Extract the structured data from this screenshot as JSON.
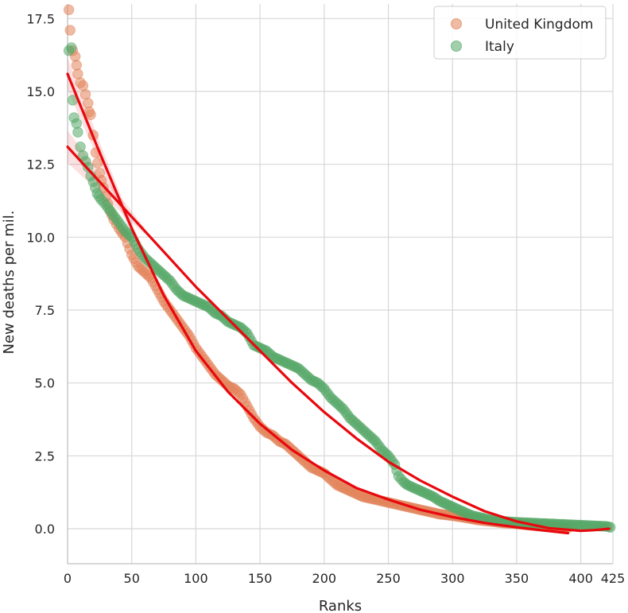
{
  "chart_data": {
    "type": "scatter",
    "title": "",
    "xlabel": "Ranks",
    "ylabel": "New deaths per mil.",
    "xlim": [
      0,
      425
    ],
    "ylim": [
      -1.2,
      18.0
    ],
    "xticks": [
      0,
      50,
      100,
      150,
      200,
      250,
      300,
      350,
      400,
      425
    ],
    "xtick_labels": [
      "0",
      "50",
      "100",
      "150",
      "200",
      "250",
      "300",
      "350",
      "400",
      "425"
    ],
    "yticks": [
      0.0,
      2.5,
      5.0,
      7.5,
      10.0,
      12.5,
      15.0,
      17.5
    ],
    "ytick_labels": [
      "0.0",
      "2.5",
      "5.0",
      "7.5",
      "10.0",
      "12.5",
      "15.0",
      "17.5"
    ],
    "grid": true,
    "legend_position": "top-right",
    "series": [
      {
        "name": "United Kingdom",
        "color": "#e1845a",
        "points": [
          [
            1,
            17.8
          ],
          [
            2,
            17.1
          ],
          [
            4,
            16.4
          ],
          [
            6,
            16.2
          ],
          [
            7,
            15.9
          ],
          [
            8,
            15.6
          ],
          [
            10,
            15.3
          ],
          [
            12,
            15.2
          ],
          [
            14,
            14.9
          ],
          [
            16,
            14.6
          ],
          [
            17,
            14.3
          ],
          [
            18,
            14.2
          ],
          [
            20,
            13.5
          ],
          [
            22,
            12.9
          ],
          [
            25,
            12.2
          ],
          [
            28,
            11.7
          ],
          [
            30,
            11.4
          ],
          [
            33,
            10.9
          ],
          [
            36,
            10.6
          ],
          [
            40,
            10.3
          ],
          [
            45,
            10.0
          ],
          [
            50,
            9.4
          ],
          [
            55,
            9.0
          ],
          [
            60,
            8.8
          ],
          [
            65,
            8.6
          ],
          [
            70,
            8.2
          ],
          [
            75,
            7.8
          ],
          [
            80,
            7.5
          ],
          [
            85,
            7.2
          ],
          [
            90,
            6.9
          ],
          [
            95,
            6.6
          ],
          [
            100,
            6.2
          ],
          [
            105,
            5.9
          ],
          [
            110,
            5.6
          ],
          [
            115,
            5.3
          ],
          [
            120,
            5.1
          ],
          [
            125,
            4.9
          ],
          [
            130,
            4.8
          ],
          [
            135,
            4.6
          ],
          [
            140,
            4.2
          ],
          [
            145,
            3.8
          ],
          [
            150,
            3.5
          ],
          [
            155,
            3.3
          ],
          [
            160,
            3.2
          ],
          [
            165,
            3.0
          ],
          [
            170,
            2.9
          ],
          [
            175,
            2.7
          ],
          [
            180,
            2.5
          ],
          [
            185,
            2.3
          ],
          [
            190,
            2.1
          ],
          [
            195,
            2.0
          ],
          [
            200,
            1.9
          ],
          [
            205,
            1.7
          ],
          [
            210,
            1.5
          ],
          [
            215,
            1.4
          ],
          [
            220,
            1.3
          ],
          [
            225,
            1.2
          ],
          [
            230,
            1.1
          ],
          [
            240,
            1.0
          ],
          [
            250,
            0.9
          ],
          [
            260,
            0.8
          ],
          [
            270,
            0.7
          ],
          [
            280,
            0.6
          ],
          [
            290,
            0.5
          ],
          [
            300,
            0.45
          ],
          [
            310,
            0.38
          ],
          [
            320,
            0.3
          ],
          [
            330,
            0.25
          ],
          [
            340,
            0.2
          ],
          [
            350,
            0.17
          ],
          [
            360,
            0.12
          ],
          [
            370,
            0.08
          ],
          [
            380,
            0.05
          ],
          [
            390,
            0.03
          ]
        ]
      },
      {
        "name": "Italy",
        "color": "#55a868",
        "points": [
          [
            1,
            16.4
          ],
          [
            3,
            16.5
          ],
          [
            4,
            14.7
          ],
          [
            5,
            14.1
          ],
          [
            7,
            13.9
          ],
          [
            8,
            13.6
          ],
          [
            10,
            13.1
          ],
          [
            12,
            12.8
          ],
          [
            14,
            12.6
          ],
          [
            16,
            12.4
          ],
          [
            18,
            12.1
          ],
          [
            20,
            11.9
          ],
          [
            23,
            11.5
          ],
          [
            26,
            11.3
          ],
          [
            30,
            11.1
          ],
          [
            35,
            10.8
          ],
          [
            40,
            10.5
          ],
          [
            45,
            10.2
          ],
          [
            50,
            10.0
          ],
          [
            55,
            9.6
          ],
          [
            60,
            9.3
          ],
          [
            65,
            9.1
          ],
          [
            70,
            8.9
          ],
          [
            75,
            8.7
          ],
          [
            80,
            8.5
          ],
          [
            85,
            8.2
          ],
          [
            90,
            8.0
          ],
          [
            95,
            7.9
          ],
          [
            100,
            7.8
          ],
          [
            105,
            7.7
          ],
          [
            110,
            7.6
          ],
          [
            115,
            7.4
          ],
          [
            120,
            7.3
          ],
          [
            125,
            7.1
          ],
          [
            130,
            7.0
          ],
          [
            135,
            6.9
          ],
          [
            140,
            6.7
          ],
          [
            145,
            6.3
          ],
          [
            150,
            6.2
          ],
          [
            155,
            6.1
          ],
          [
            160,
            5.9
          ],
          [
            165,
            5.8
          ],
          [
            170,
            5.7
          ],
          [
            175,
            5.6
          ],
          [
            180,
            5.5
          ],
          [
            185,
            5.3
          ],
          [
            190,
            5.1
          ],
          [
            195,
            5.0
          ],
          [
            200,
            4.8
          ],
          [
            205,
            4.5
          ],
          [
            210,
            4.3
          ],
          [
            215,
            4.1
          ],
          [
            220,
            3.8
          ],
          [
            225,
            3.6
          ],
          [
            230,
            3.4
          ],
          [
            235,
            3.2
          ],
          [
            240,
            3.0
          ],
          [
            245,
            2.7
          ],
          [
            250,
            2.5
          ],
          [
            255,
            2.2
          ],
          [
            258,
            1.8
          ],
          [
            262,
            1.6
          ],
          [
            265,
            1.5
          ],
          [
            270,
            1.4
          ],
          [
            275,
            1.3
          ],
          [
            280,
            1.2
          ],
          [
            285,
            1.1
          ],
          [
            290,
            0.95
          ],
          [
            295,
            0.85
          ],
          [
            300,
            0.75
          ],
          [
            305,
            0.65
          ],
          [
            310,
            0.55
          ],
          [
            315,
            0.45
          ],
          [
            320,
            0.4
          ],
          [
            325,
            0.35
          ],
          [
            330,
            0.3
          ],
          [
            340,
            0.25
          ],
          [
            350,
            0.22
          ],
          [
            360,
            0.2
          ],
          [
            370,
            0.18
          ],
          [
            380,
            0.16
          ],
          [
            390,
            0.14
          ],
          [
            400,
            0.12
          ],
          [
            410,
            0.1
          ],
          [
            420,
            0.08
          ],
          [
            423,
            0.05
          ]
        ]
      }
    ],
    "fits": [
      {
        "name": "United Kingdom fit",
        "color": "#e8080e",
        "x": [
          0,
          25,
          50,
          75,
          100,
          125,
          150,
          175,
          200,
          225,
          250,
          275,
          300,
          325,
          350,
          375,
          390
        ],
        "y": [
          15.6,
          12.9,
          10.3,
          8.0,
          6.1,
          4.7,
          3.6,
          2.7,
          2.0,
          1.4,
          1.0,
          0.65,
          0.4,
          0.2,
          0.05,
          -0.08,
          -0.15
        ]
      },
      {
        "name": "Italy fit",
        "color": "#e8080e",
        "x": [
          0,
          25,
          50,
          75,
          100,
          125,
          150,
          175,
          200,
          225,
          250,
          275,
          300,
          325,
          350,
          375,
          400,
          410,
          422
        ],
        "y": [
          13.1,
          11.9,
          10.7,
          9.5,
          8.3,
          7.2,
          6.1,
          5.0,
          4.0,
          3.1,
          2.3,
          1.65,
          1.1,
          0.6,
          0.25,
          0.02,
          -0.07,
          -0.05,
          0.0
        ]
      }
    ]
  }
}
